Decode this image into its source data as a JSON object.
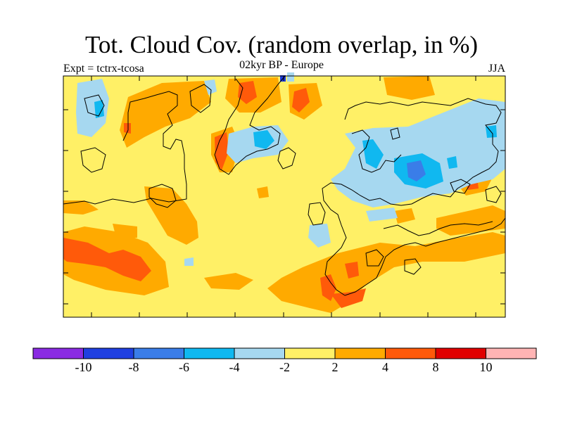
{
  "title": "Tot. Cloud Cov. (random overlap, in %)",
  "subtitle_left": "Expt = tctrx-tcosa",
  "subtitle_center": "02kyr BP - Europe",
  "subtitle_right": "JJA",
  "colorbar": {
    "colors": [
      "#8a2be2",
      "#1f3fe0",
      "#3a7de8",
      "#10b8f0",
      "#a6d8f0",
      "#fff066",
      "#ffaa00",
      "#ff5a0a",
      "#e00000",
      "#ffb4b4"
    ],
    "tick_labels": [
      "-10",
      "-8",
      "-6",
      "-4",
      "-2",
      "2",
      "4",
      "8",
      "10"
    ]
  }
}
